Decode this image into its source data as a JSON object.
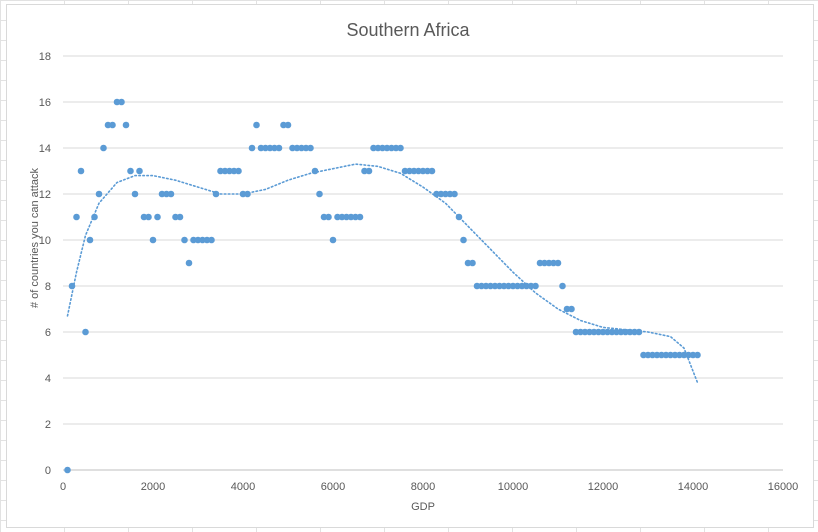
{
  "chart_data": {
    "type": "scatter",
    "title": "Southern Africa",
    "xlabel": "GDP",
    "ylabel": "# of countries you can attack",
    "xlim": [
      0,
      16000
    ],
    "ylim": [
      0,
      18
    ],
    "xticks": [
      0,
      2000,
      4000,
      6000,
      8000,
      10000,
      12000,
      14000,
      16000
    ],
    "yticks": [
      0,
      2,
      4,
      6,
      8,
      10,
      12,
      14,
      16,
      18
    ],
    "grid": "horizontal",
    "legend": "none",
    "colors": {
      "points": "#5b9bd5",
      "trendline": "#5b9bd5",
      "gridline": "#d9d9d9",
      "text": "#595959"
    },
    "trendline": {
      "style": "dotted",
      "points": [
        [
          100,
          6.7
        ],
        [
          300,
          8.6
        ],
        [
          500,
          10.2
        ],
        [
          800,
          11.6
        ],
        [
          1200,
          12.5
        ],
        [
          1600,
          12.8
        ],
        [
          2000,
          12.8
        ],
        [
          2500,
          12.6
        ],
        [
          3000,
          12.3
        ],
        [
          3500,
          12.0
        ],
        [
          4000,
          12.0
        ],
        [
          4500,
          12.2
        ],
        [
          5000,
          12.6
        ],
        [
          5500,
          12.9
        ],
        [
          6000,
          13.1
        ],
        [
          6500,
          13.3
        ],
        [
          7000,
          13.2
        ],
        [
          7500,
          12.9
        ],
        [
          8000,
          12.3
        ],
        [
          8500,
          11.6
        ],
        [
          9000,
          10.6
        ],
        [
          9500,
          9.6
        ],
        [
          10000,
          8.6
        ],
        [
          10500,
          7.7
        ],
        [
          11000,
          7.0
        ],
        [
          11500,
          6.5
        ],
        [
          12000,
          6.2
        ],
        [
          12500,
          6.1
        ],
        [
          13000,
          6.0
        ],
        [
          13500,
          5.8
        ],
        [
          13800,
          5.3
        ],
        [
          14100,
          3.8
        ]
      ]
    },
    "points": [
      [
        100,
        0
      ],
      [
        200,
        8
      ],
      [
        300,
        11
      ],
      [
        400,
        13
      ],
      [
        500,
        6
      ],
      [
        600,
        10
      ],
      [
        700,
        11
      ],
      [
        800,
        12
      ],
      [
        900,
        14
      ],
      [
        1000,
        15
      ],
      [
        1100,
        15
      ],
      [
        1200,
        16
      ],
      [
        1300,
        16
      ],
      [
        1400,
        15
      ],
      [
        1500,
        13
      ],
      [
        1600,
        12
      ],
      [
        1700,
        13
      ],
      [
        1800,
        11
      ],
      [
        1900,
        11
      ],
      [
        2000,
        10
      ],
      [
        2100,
        11
      ],
      [
        2200,
        12
      ],
      [
        2300,
        12
      ],
      [
        2400,
        12
      ],
      [
        2500,
        11
      ],
      [
        2600,
        11
      ],
      [
        2700,
        10
      ],
      [
        2800,
        9
      ],
      [
        2900,
        10
      ],
      [
        3000,
        10
      ],
      [
        3100,
        10
      ],
      [
        3200,
        10
      ],
      [
        3300,
        10
      ],
      [
        3400,
        12
      ],
      [
        3500,
        13
      ],
      [
        3600,
        13
      ],
      [
        3700,
        13
      ],
      [
        3800,
        13
      ],
      [
        3900,
        13
      ],
      [
        4000,
        12
      ],
      [
        4100,
        12
      ],
      [
        4200,
        14
      ],
      [
        4300,
        15
      ],
      [
        4400,
        14
      ],
      [
        4500,
        14
      ],
      [
        4600,
        14
      ],
      [
        4700,
        14
      ],
      [
        4800,
        14
      ],
      [
        4900,
        15
      ],
      [
        5000,
        15
      ],
      [
        5100,
        14
      ],
      [
        5200,
        14
      ],
      [
        5300,
        14
      ],
      [
        5400,
        14
      ],
      [
        5500,
        14
      ],
      [
        5600,
        13
      ],
      [
        5700,
        12
      ],
      [
        5800,
        11
      ],
      [
        5900,
        11
      ],
      [
        6000,
        10
      ],
      [
        6100,
        11
      ],
      [
        6200,
        11
      ],
      [
        6300,
        11
      ],
      [
        6400,
        11
      ],
      [
        6500,
        11
      ],
      [
        6600,
        11
      ],
      [
        6700,
        13
      ],
      [
        6800,
        13
      ],
      [
        6900,
        14
      ],
      [
        7000,
        14
      ],
      [
        7100,
        14
      ],
      [
        7200,
        14
      ],
      [
        7300,
        14
      ],
      [
        7400,
        14
      ],
      [
        7500,
        14
      ],
      [
        7600,
        13
      ],
      [
        7700,
        13
      ],
      [
        7800,
        13
      ],
      [
        7900,
        13
      ],
      [
        8000,
        13
      ],
      [
        8100,
        13
      ],
      [
        8200,
        13
      ],
      [
        8300,
        12
      ],
      [
        8400,
        12
      ],
      [
        8500,
        12
      ],
      [
        8600,
        12
      ],
      [
        8700,
        12
      ],
      [
        8800,
        11
      ],
      [
        8900,
        10
      ],
      [
        9000,
        9
      ],
      [
        9100,
        9
      ],
      [
        9200,
        8
      ],
      [
        9300,
        8
      ],
      [
        9400,
        8
      ],
      [
        9500,
        8
      ],
      [
        9600,
        8
      ],
      [
        9700,
        8
      ],
      [
        9800,
        8
      ],
      [
        9900,
        8
      ],
      [
        10000,
        8
      ],
      [
        10100,
        8
      ],
      [
        10200,
        8
      ],
      [
        10300,
        8
      ],
      [
        10400,
        8
      ],
      [
        10500,
        8
      ],
      [
        10600,
        9
      ],
      [
        10700,
        9
      ],
      [
        10800,
        9
      ],
      [
        10900,
        9
      ],
      [
        11000,
        9
      ],
      [
        11100,
        8
      ],
      [
        11200,
        7
      ],
      [
        11300,
        7
      ],
      [
        11400,
        6
      ],
      [
        11500,
        6
      ],
      [
        11600,
        6
      ],
      [
        11700,
        6
      ],
      [
        11800,
        6
      ],
      [
        11900,
        6
      ],
      [
        12000,
        6
      ],
      [
        12100,
        6
      ],
      [
        12200,
        6
      ],
      [
        12300,
        6
      ],
      [
        12400,
        6
      ],
      [
        12500,
        6
      ],
      [
        12600,
        6
      ],
      [
        12700,
        6
      ],
      [
        12800,
        6
      ],
      [
        12900,
        5
      ],
      [
        13000,
        5
      ],
      [
        13100,
        5
      ],
      [
        13200,
        5
      ],
      [
        13300,
        5
      ],
      [
        13400,
        5
      ],
      [
        13500,
        5
      ],
      [
        13600,
        5
      ],
      [
        13700,
        5
      ],
      [
        13800,
        5
      ],
      [
        13900,
        5
      ],
      [
        14000,
        5
      ],
      [
        14100,
        5
      ]
    ]
  }
}
